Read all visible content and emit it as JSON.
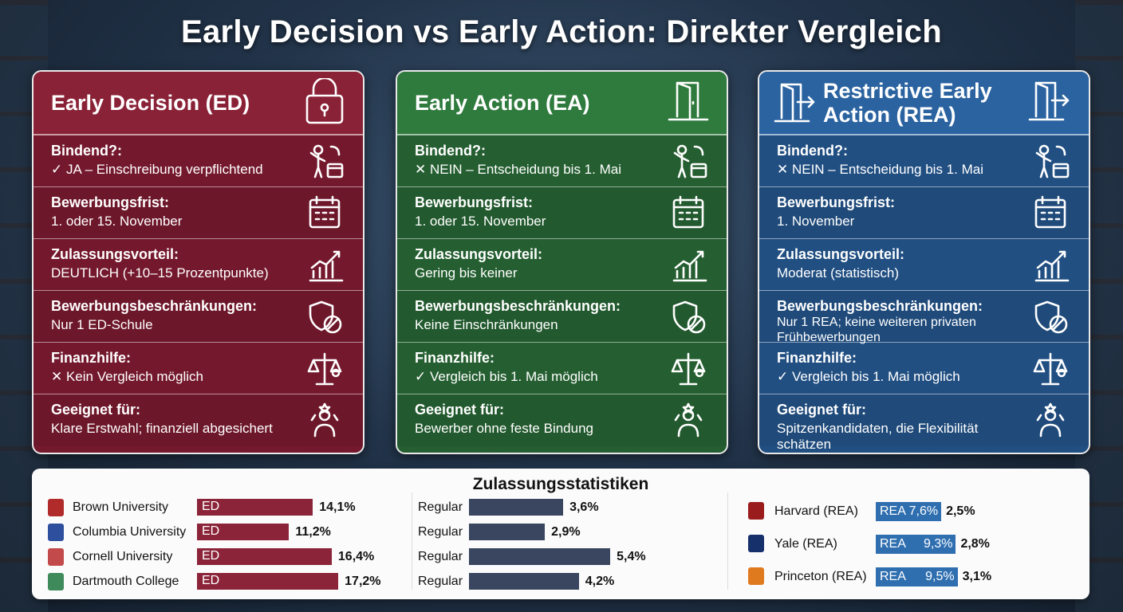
{
  "title": "Early Decision vs Early Action: Direkter Vergleich",
  "cards": [
    {
      "title": "Early Decision (ED)",
      "rows": [
        {
          "label": "Bindend?:",
          "text": "✓ JA – Einschreibung verpflichtend"
        },
        {
          "label": "Bewerbungsfrist:",
          "text": "1. oder 15. November"
        },
        {
          "label": "Zulassungsvorteil:",
          "text": "DEUTLICH (+10–15 Prozentpunkte)"
        },
        {
          "label": "Bewerbungsbeschränkungen:",
          "text": "Nur 1 ED-Schule"
        },
        {
          "label": "Finanzhilfe:",
          "text": "✕ Kein Vergleich möglich"
        },
        {
          "label": "Geeignet für:",
          "text": "Klare Erstwahl; finanziell abgesichert"
        }
      ]
    },
    {
      "title": "Early Action (EA)",
      "rows": [
        {
          "label": "Bindend?:",
          "text": "✕ NEIN – Entscheidung bis 1. Mai"
        },
        {
          "label": "Bewerbungsfrist:",
          "text": "1. oder 15. November"
        },
        {
          "label": "Zulassungsvorteil:",
          "text": "Gering bis keiner"
        },
        {
          "label": "Bewerbungsbeschränkungen:",
          "text": "Keine Einschränkungen"
        },
        {
          "label": "Finanzhilfe:",
          "text": "✓ Vergleich bis 1. Mai möglich"
        },
        {
          "label": "Geeignet für:",
          "text": "Bewerber ohne feste Bindung"
        }
      ]
    },
    {
      "title": "Restrictive Early Action (REA)",
      "rows": [
        {
          "label": "Bindend?:",
          "text": "✕ NEIN – Entscheidung bis 1. Mai"
        },
        {
          "label": "Bewerbungsfrist:",
          "text": "1. November"
        },
        {
          "label": "Zulassungsvorteil:",
          "text": "Moderat (statistisch)"
        },
        {
          "label": "Bewerbungsbeschränkungen:",
          "text": "Nur 1 REA; keine weiteren privaten Frühbewerbungen"
        },
        {
          "label": "Finanzhilfe:",
          "text": "✓ Vergleich bis 1. Mai möglich"
        },
        {
          "label": "Geeignet für:",
          "text": "Spitzenkandidaten, die Flexibilität schätzen"
        }
      ]
    }
  ],
  "stats": {
    "title": "Zulassungsstatistiken",
    "ed": [
      {
        "school": "Brown University",
        "bar_label": "ED",
        "value": 14.1,
        "value_label": "14,1%"
      },
      {
        "school": "Columbia University",
        "bar_label": "ED",
        "value": 11.2,
        "value_label": "11,2%"
      },
      {
        "school": "Cornell University",
        "bar_label": "ED",
        "value": 16.4,
        "value_label": "16,4%"
      },
      {
        "school": "Dartmouth College",
        "bar_label": "ED",
        "value": 17.2,
        "value_label": "17,2%"
      }
    ],
    "regular": [
      {
        "label": "Regular",
        "value": 3.6,
        "value_label": "3,6%"
      },
      {
        "label": "Regular",
        "value": 2.9,
        "value_label": "2,9%"
      },
      {
        "label": "Regular",
        "value": 5.4,
        "value_label": "5,4%"
      },
      {
        "label": "Regular",
        "value": 4.2,
        "value_label": "4,2%"
      }
    ],
    "rea": [
      {
        "school": "Harvard (REA)",
        "bar_label": "REA",
        "value": 7.6,
        "value_label": "7,6%",
        "regular_label": "2,5%"
      },
      {
        "school": "Yale (REA)",
        "bar_label": "REA",
        "value": 9.3,
        "value_label": "9,3%",
        "regular_label": "2,8%"
      },
      {
        "school": "Princeton (REA)",
        "bar_label": "REA",
        "value": 9.5,
        "value_label": "9,5%",
        "regular_label": "3,1%"
      }
    ]
  }
}
